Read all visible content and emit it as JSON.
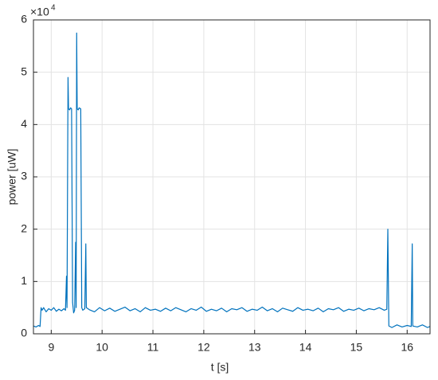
{
  "chart_data": {
    "type": "line",
    "xlabel": "t [s]",
    "ylabel": "power [uW]",
    "y_multiplier": {
      "base": "×10",
      "exponent": "4"
    },
    "xlim": [
      8.65,
      16.45
    ],
    "ylim": [
      0,
      6
    ],
    "xticks": [
      9,
      10,
      11,
      12,
      13,
      14,
      15,
      16
    ],
    "yticks": [
      0,
      1,
      2,
      3,
      4,
      5,
      6
    ],
    "grid": true,
    "x": [
      8.65,
      8.7,
      8.75,
      8.78,
      8.8,
      8.82,
      8.85,
      8.9,
      8.95,
      9.0,
      9.05,
      9.1,
      9.15,
      9.2,
      9.25,
      9.28,
      9.3,
      9.31,
      9.33,
      9.34,
      9.36,
      9.38,
      9.4,
      9.42,
      9.44,
      9.46,
      9.48,
      9.49,
      9.5,
      9.51,
      9.53,
      9.55,
      9.58,
      9.6,
      9.62,
      9.66,
      9.68,
      9.69,
      9.75,
      9.85,
      9.95,
      10.05,
      10.15,
      10.25,
      10.35,
      10.45,
      10.55,
      10.65,
      10.75,
      10.85,
      10.95,
      11.05,
      11.15,
      11.25,
      11.35,
      11.45,
      11.55,
      11.65,
      11.75,
      11.85,
      11.95,
      12.05,
      12.15,
      12.25,
      12.35,
      12.45,
      12.55,
      12.65,
      12.75,
      12.85,
      12.95,
      13.05,
      13.15,
      13.25,
      13.35,
      13.45,
      13.55,
      13.65,
      13.75,
      13.85,
      13.95,
      14.05,
      14.15,
      14.25,
      14.35,
      14.45,
      14.55,
      14.65,
      14.75,
      14.85,
      14.95,
      15.05,
      15.15,
      15.25,
      15.35,
      15.45,
      15.55,
      15.6,
      15.62,
      15.64,
      15.7,
      15.8,
      15.9,
      16.0,
      16.08,
      16.1,
      16.11,
      16.2,
      16.3,
      16.4,
      16.45
    ],
    "series": [
      {
        "name": "power",
        "color": "#0072bd",
        "values": [
          0.15,
          0.13,
          0.16,
          0.14,
          0.5,
          0.45,
          0.5,
          0.42,
          0.48,
          0.45,
          0.5,
          0.43,
          0.47,
          0.44,
          0.48,
          0.45,
          1.1,
          0.5,
          4.9,
          4.3,
          4.28,
          4.32,
          4.3,
          0.6,
          0.4,
          0.45,
          1.75,
          0.5,
          5.75,
          4.3,
          4.28,
          4.32,
          4.3,
          0.5,
          0.45,
          0.48,
          1.72,
          0.5,
          0.46,
          0.42,
          0.5,
          0.44,
          0.49,
          0.43,
          0.47,
          0.51,
          0.44,
          0.48,
          0.42,
          0.5,
          0.45,
          0.47,
          0.43,
          0.49,
          0.44,
          0.5,
          0.46,
          0.42,
          0.48,
          0.45,
          0.51,
          0.43,
          0.47,
          0.44,
          0.49,
          0.42,
          0.48,
          0.46,
          0.5,
          0.43,
          0.47,
          0.45,
          0.51,
          0.44,
          0.48,
          0.42,
          0.49,
          0.46,
          0.43,
          0.5,
          0.45,
          0.47,
          0.44,
          0.49,
          0.42,
          0.48,
          0.46,
          0.5,
          0.43,
          0.47,
          0.45,
          0.49,
          0.44,
          0.48,
          0.46,
          0.5,
          0.45,
          0.47,
          2.0,
          0.15,
          0.12,
          0.17,
          0.13,
          0.16,
          0.14,
          1.72,
          0.15,
          0.13,
          0.17,
          0.12,
          0.14
        ]
      }
    ]
  }
}
